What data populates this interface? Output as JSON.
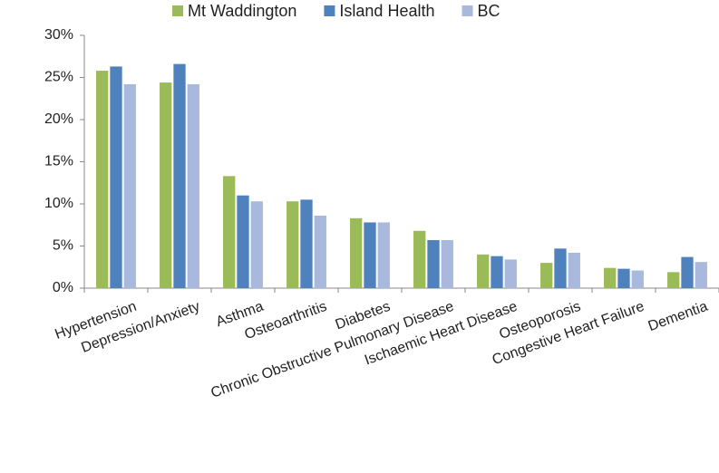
{
  "chart_data": {
    "type": "bar",
    "categories": [
      "Hypertension",
      "Depression/Anxiety",
      "Asthma",
      "Osteoarthritis",
      "Diabetes",
      "Chronic Obstructive Pulmonary Disease",
      "Ischaemic Heart Disease",
      "Osteoporosis",
      "Congestive Heart Failure",
      "Dementia"
    ],
    "series": [
      {
        "name": "Mt Waddington",
        "color": "#9bbb59",
        "values": [
          25.8,
          24.4,
          13.3,
          10.3,
          8.3,
          6.8,
          4.0,
          3.0,
          2.4,
          1.9
        ]
      },
      {
        "name": "Island Health",
        "color": "#4f81bd",
        "values": [
          26.3,
          26.6,
          11.0,
          10.5,
          7.8,
          5.7,
          3.8,
          4.7,
          2.3,
          3.7
        ]
      },
      {
        "name": "BC",
        "color": "#a9b9de",
        "values": [
          24.2,
          24.2,
          10.3,
          8.6,
          7.8,
          5.7,
          3.4,
          4.2,
          2.1,
          3.1
        ]
      }
    ],
    "ylim": [
      0,
      30
    ],
    "yticks": [
      {
        "value": 0,
        "label": "0%"
      },
      {
        "value": 5,
        "label": "5%"
      },
      {
        "value": 10,
        "label": "10%"
      },
      {
        "value": 15,
        "label": "15%"
      },
      {
        "value": 20,
        "label": "20%"
      },
      {
        "value": 25,
        "label": "25%"
      },
      {
        "value": 30,
        "label": "30%"
      }
    ],
    "legend": "top",
    "grid": false
  }
}
